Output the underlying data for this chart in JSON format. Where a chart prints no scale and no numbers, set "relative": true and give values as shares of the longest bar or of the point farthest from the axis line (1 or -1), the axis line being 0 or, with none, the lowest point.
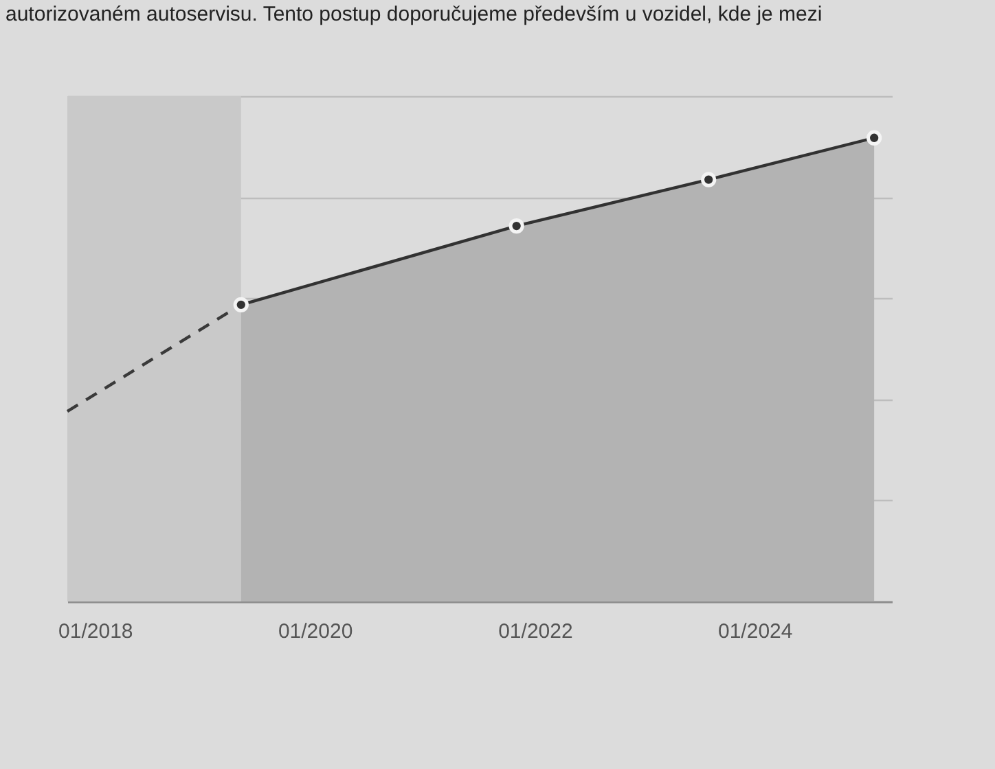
{
  "chart_data": {
    "type": "area",
    "relative": true,
    "annotations": [
      "autorizovaném autoservisu. Tento postup doporučujeme především u vozidel, kde je mezi"
    ],
    "xlim": [
      "2017-10",
      "2025-04"
    ],
    "xticks": [
      {
        "value": "2018-01",
        "label": "01/2018"
      },
      {
        "value": "2020-01",
        "label": "01/2020"
      },
      {
        "value": "2022-01",
        "label": "01/2022"
      },
      {
        "value": "2024-01",
        "label": "01/2024"
      }
    ],
    "grid": "y",
    "bands": [
      {
        "axis": "x",
        "from": "2017-10",
        "to": "2019-05",
        "color": "#c9c9c9"
      }
    ],
    "series": [
      {
        "type": "line",
        "color": "#3a3a3a",
        "line_style": "dashed",
        "x": [
          "2017-10",
          "2019-05"
        ],
        "values": [
          0.41,
          0.64
        ]
      },
      {
        "color": "#b3b3b3",
        "line_style": "solid",
        "marker": "circle",
        "x": [
          "2019-05",
          "2021-11",
          "2023-08",
          "2025-02"
        ],
        "values": [
          0.64,
          0.81,
          0.91,
          1
        ]
      }
    ]
  }
}
